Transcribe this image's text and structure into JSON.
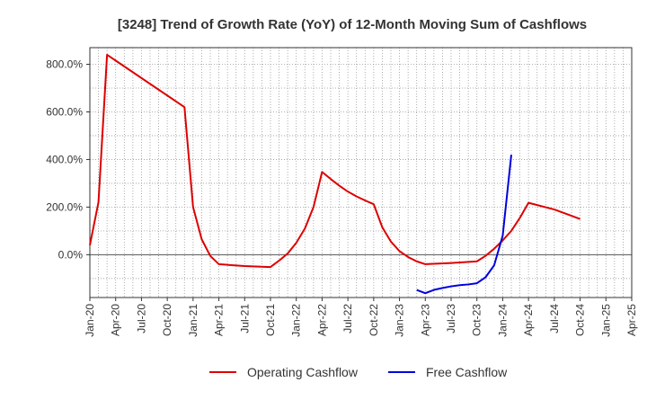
{
  "chart_data": {
    "type": "line",
    "title": "[3248]  Trend of Growth Rate (YoY) of 12-Month Moving Sum of Cashflows",
    "xlabel": "",
    "ylabel": "",
    "x_tick_labels": [
      "Jan-20",
      "Apr-20",
      "Jul-20",
      "Oct-20",
      "Jan-21",
      "Apr-21",
      "Jul-21",
      "Oct-21",
      "Jan-22",
      "Apr-22",
      "Jul-22",
      "Oct-22",
      "Jan-23",
      "Apr-23",
      "Jul-23",
      "Oct-23",
      "Jan-24",
      "Apr-24",
      "Jul-24",
      "Oct-24",
      "Jan-25",
      "Apr-25"
    ],
    "y_tick_labels": [
      "800.0%",
      "600.0%",
      "400.0%",
      "200.0%",
      "0.0%"
    ],
    "y_tick_values": [
      800,
      600,
      400,
      200,
      0
    ],
    "ylim": [
      -180,
      870
    ],
    "grid": true,
    "legend_position": "bottom",
    "series": [
      {
        "name": "Operating Cashflow",
        "color": "#dd0000",
        "points": [
          [
            "2020-01",
            40
          ],
          [
            "2020-02",
            220
          ],
          [
            "2020-03",
            840
          ],
          [
            "2020-12",
            620
          ],
          [
            "2021-01",
            200
          ],
          [
            "2021-02",
            65
          ],
          [
            "2021-03",
            -5
          ],
          [
            "2021-04",
            -40
          ],
          [
            "2021-07",
            -48
          ],
          [
            "2021-10",
            -52
          ],
          [
            "2021-11",
            -25
          ],
          [
            "2021-12",
            5
          ],
          [
            "2022-01",
            50
          ],
          [
            "2022-02",
            110
          ],
          [
            "2022-03",
            200
          ],
          [
            "2022-04",
            348
          ],
          [
            "2022-05",
            318
          ],
          [
            "2022-06",
            290
          ],
          [
            "2022-07",
            265
          ],
          [
            "2022-08",
            245
          ],
          [
            "2022-09",
            228
          ],
          [
            "2022-10",
            212
          ],
          [
            "2022-11",
            115
          ],
          [
            "2022-12",
            55
          ],
          [
            "2023-01",
            15
          ],
          [
            "2023-02",
            -10
          ],
          [
            "2023-03",
            -28
          ],
          [
            "2023-04",
            -40
          ],
          [
            "2023-07",
            -35
          ],
          [
            "2023-10",
            -28
          ],
          [
            "2023-11",
            -5
          ],
          [
            "2023-12",
            25
          ],
          [
            "2024-01",
            60
          ],
          [
            "2024-02",
            100
          ],
          [
            "2024-03",
            155
          ],
          [
            "2024-04",
            218
          ],
          [
            "2024-07",
            190
          ],
          [
            "2024-10",
            150
          ]
        ]
      },
      {
        "name": "Free Cashflow",
        "color": "#0000dd",
        "points": [
          [
            "2023-03",
            -148
          ],
          [
            "2023-04",
            -162
          ],
          [
            "2023-05",
            -148
          ],
          [
            "2023-06",
            -140
          ],
          [
            "2023-07",
            -133
          ],
          [
            "2023-08",
            -128
          ],
          [
            "2023-09",
            -125
          ],
          [
            "2023-10",
            -120
          ],
          [
            "2023-11",
            -95
          ],
          [
            "2023-12",
            -45
          ],
          [
            "2024-01",
            80
          ],
          [
            "2024-02",
            420
          ]
        ]
      }
    ]
  }
}
